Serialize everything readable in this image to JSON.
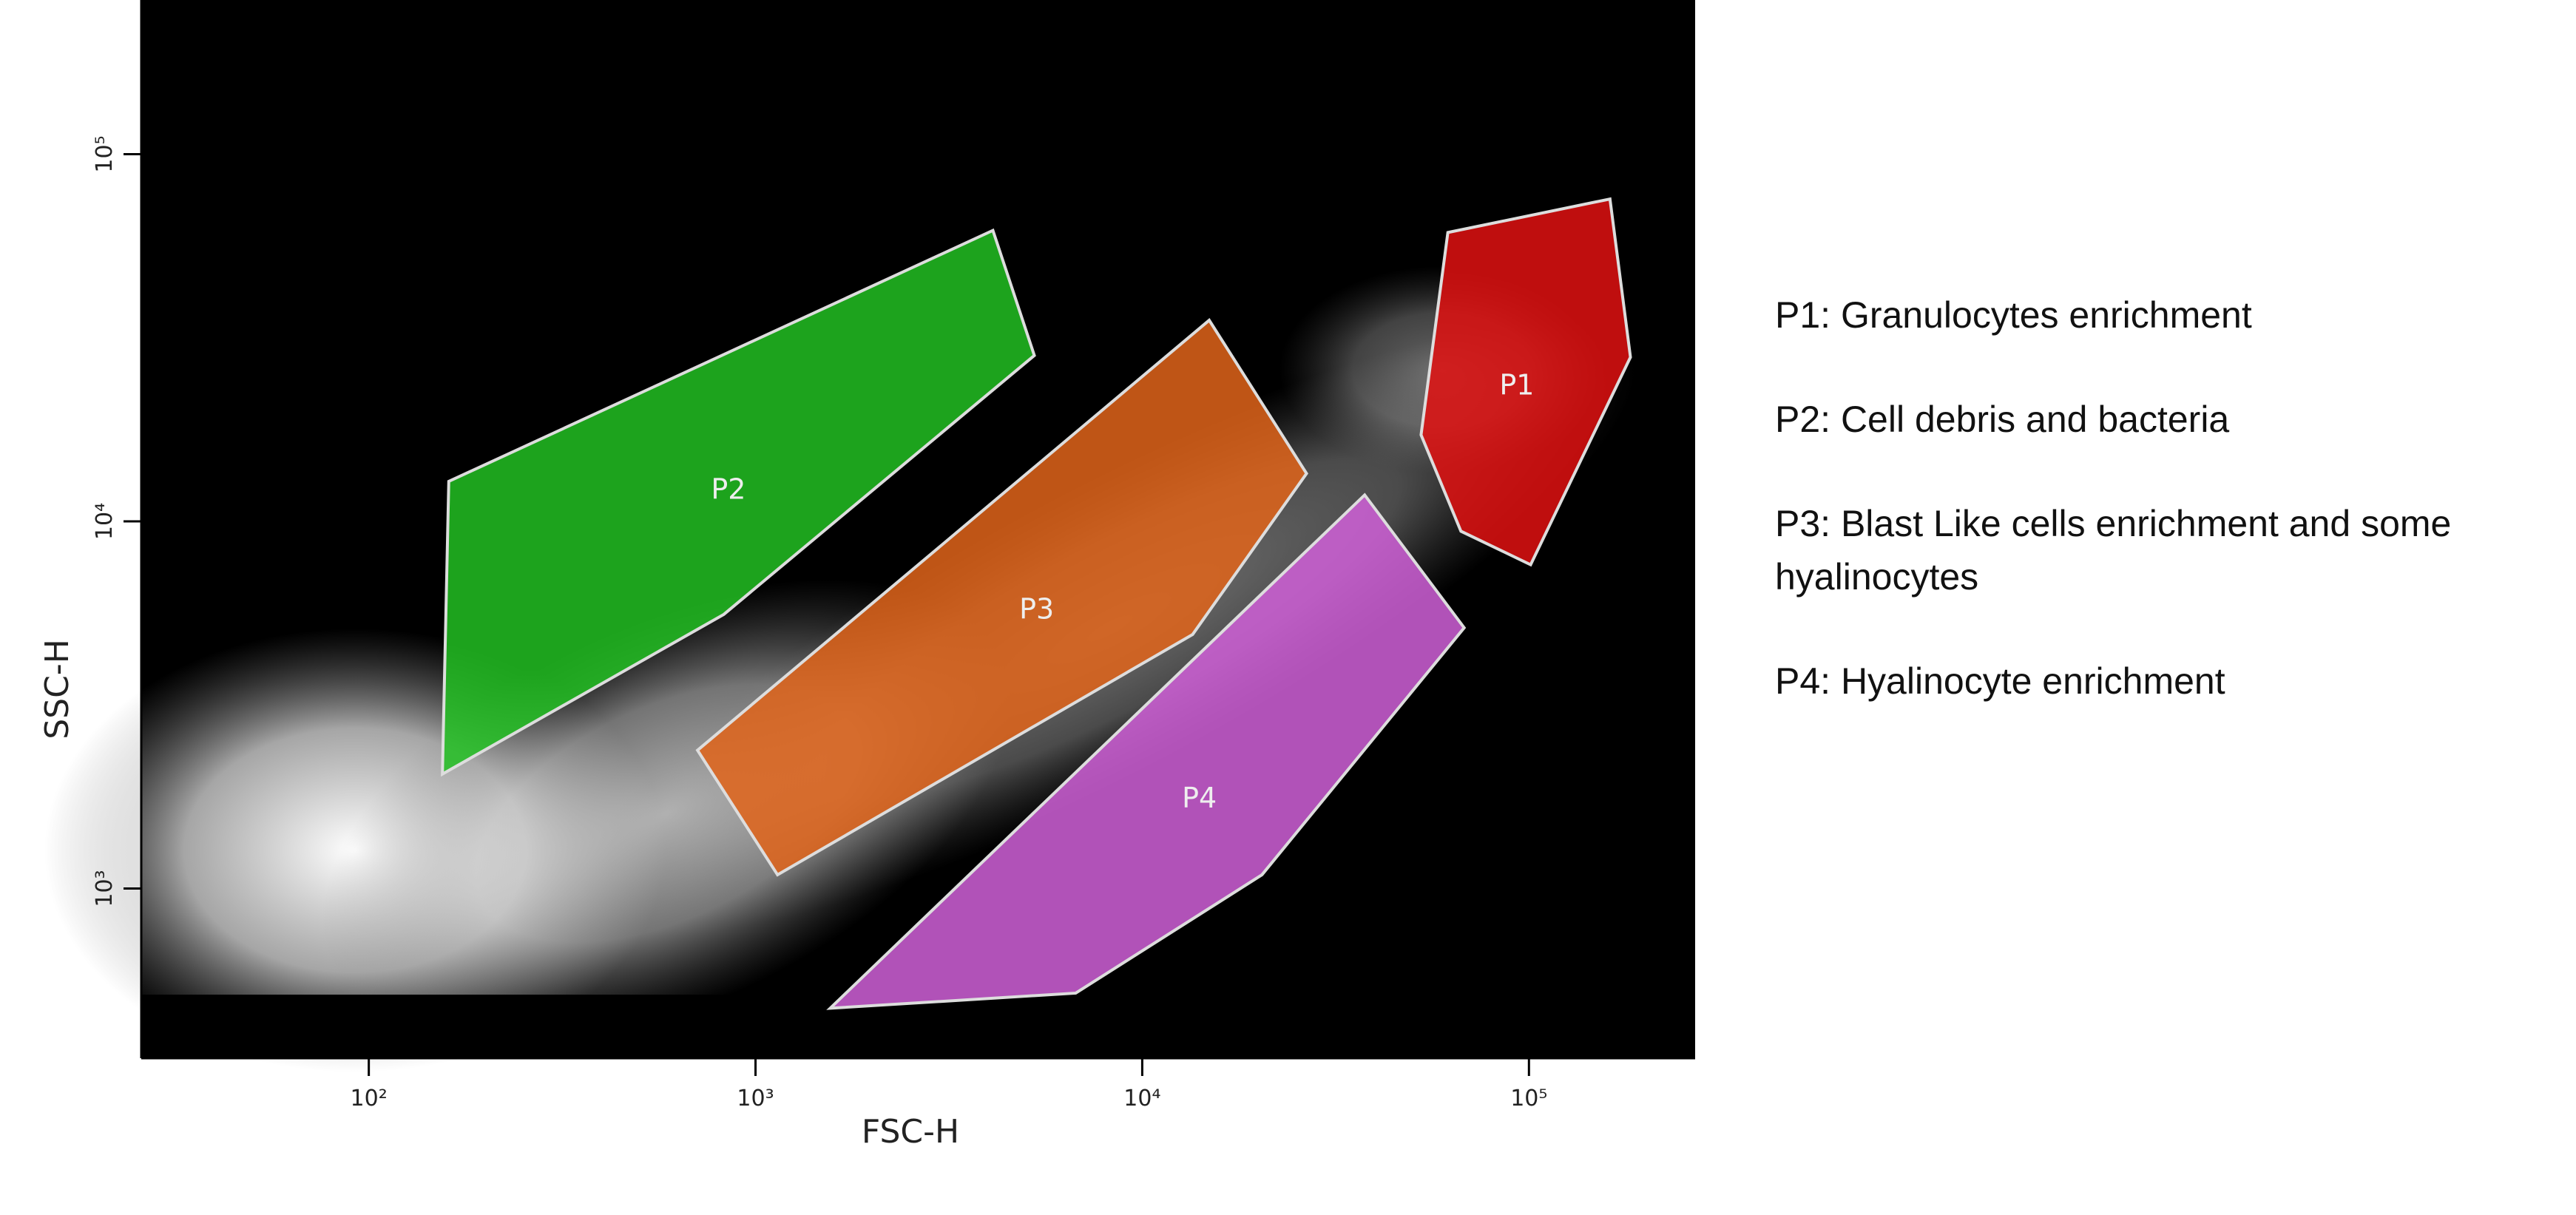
{
  "chart_data": {
    "type": "scatter",
    "x_label": "FSC-H",
    "y_label": "SSC-H",
    "xscale": "log",
    "yscale": "log",
    "xlim": [
      25.8,
      269000
    ],
    "ylim": [
      345,
      263000
    ],
    "xticks": [
      {
        "value": 100,
        "label": "10²"
      },
      {
        "value": 1000,
        "label": "10³"
      },
      {
        "value": 10000,
        "label": "10⁴"
      },
      {
        "value": 100000,
        "label": "10⁵"
      }
    ],
    "yticks": [
      {
        "value": 1000,
        "label": "10³"
      },
      {
        "value": 10000,
        "label": "10⁴"
      },
      {
        "value": 100000,
        "label": "10⁵"
      }
    ],
    "gates": [
      {
        "name": "P1",
        "color": "#e01010",
        "x": [
          61700,
          162000,
          183000,
          101000,
          66700,
          52600
        ],
        "y": [
          61200,
          75500,
          28000,
          7620,
          9400,
          17200
        ]
      },
      {
        "name": "P2",
        "color": "#22c022",
        "x": [
          161,
          4110,
          5260,
          828,
          155
        ],
        "y": [
          12850,
          62000,
          28300,
          5580,
          2050
        ]
      },
      {
        "name": "P3",
        "color": "#e0641a",
        "x": [
          708,
          14900,
          26600,
          13500,
          1140
        ],
        "y": [
          2380,
          35300,
          13500,
          4920,
          1090
        ]
      },
      {
        "name": "P4",
        "color": "#d060d8",
        "x": [
          1560,
          37600,
          68000,
          20400,
          6730
        ],
        "y": [
          472,
          11800,
          5130,
          1090,
          519
        ]
      }
    ]
  },
  "notes": [
    "P1: Granulocytes enrichment",
    "P2: Cell debris and bacteria",
    "P3: Blast Like cells enrichment and some hyalinocytes",
    "P4: Hyalinocyte enrichment"
  ]
}
